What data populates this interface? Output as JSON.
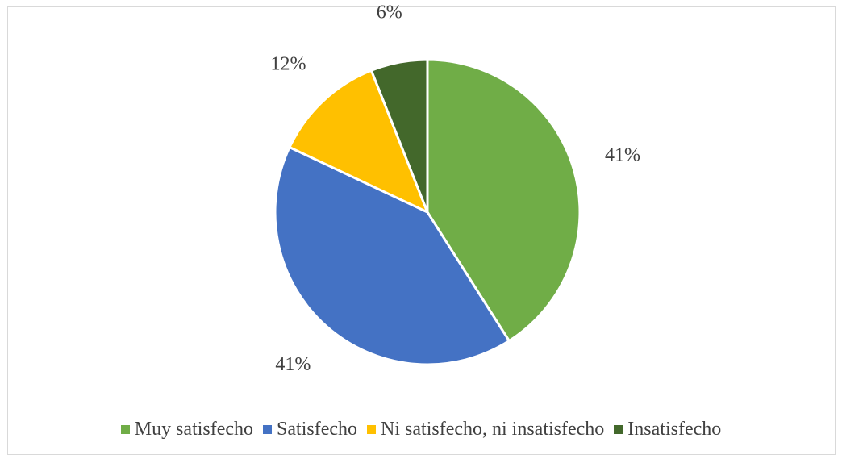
{
  "chart_data": {
    "type": "pie",
    "title": "",
    "slices": [
      {
        "name": "Muy satisfecho",
        "value": 41,
        "label": "41%",
        "color": "#70ad47"
      },
      {
        "name": "Satisfecho",
        "value": 41,
        "label": "41%",
        "color": "#4472c4"
      },
      {
        "name": "Ni satisfecho, ni insatisfecho",
        "value": 12,
        "label": "12%",
        "color": "#ffc000"
      },
      {
        "name": "Insatisfecho",
        "value": 6,
        "label": "6%",
        "color": "#43682b"
      }
    ],
    "legend_position": "bottom"
  }
}
